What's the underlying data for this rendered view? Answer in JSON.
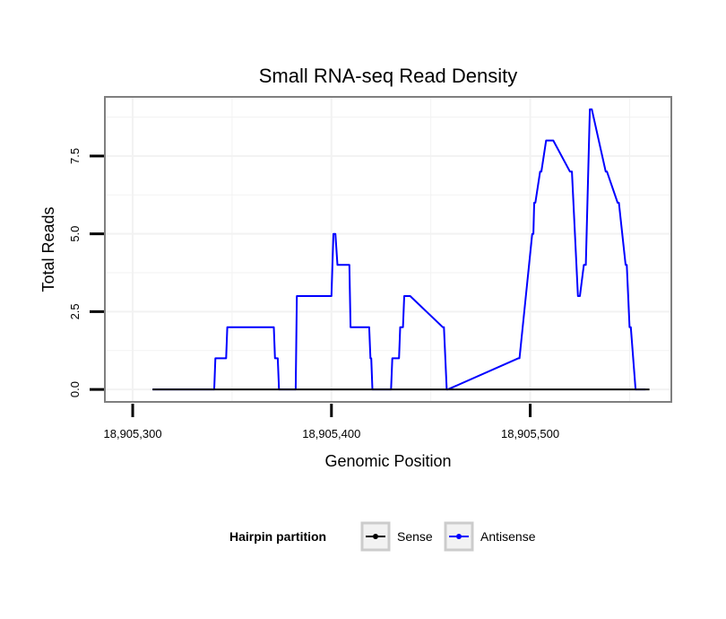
{
  "chart_data": {
    "type": "line",
    "title": "Small RNA-seq Read Density",
    "xlabel": "Genomic Position",
    "ylabel": "Total Reads",
    "xlim": [
      18905286,
      18905571
    ],
    "ylim": [
      -0.4,
      9.4
    ],
    "x_ticks": [
      18905300,
      18905400,
      18905500
    ],
    "x_tick_labels": [
      "18,905,300",
      "18,905,400",
      "18,905,500"
    ],
    "y_ticks": [
      0,
      2.5,
      5,
      7.5
    ],
    "y_tick_labels": [
      "0.0",
      "2.5",
      "5.0",
      "7.5"
    ],
    "grid": true,
    "legend": {
      "title": "Hairpin partition",
      "position": "bottom"
    },
    "series": [
      {
        "name": "Sense",
        "color": "#000000",
        "x": [
          18905310,
          18905560
        ],
        "y": [
          0,
          0
        ]
      },
      {
        "name": "Antisense",
        "color": "#0000ff",
        "x": [
          18905310,
          18905341,
          18905341.6,
          18905347,
          18905347.6,
          18905371,
          18905371.6,
          18905373,
          18905373.6,
          18905382,
          18905382.6,
          18905400,
          18905401,
          18905402,
          18905403,
          18905403.6,
          18905409,
          18905409.6,
          18905419,
          18905419.6,
          18905420,
          18905420.6,
          18905430,
          18905430.6,
          18905434,
          18905434.6,
          18905436,
          18905436.6,
          18905439,
          18905439.6,
          18905456,
          18905456.6,
          18905458,
          18905458.6,
          18905494,
          18905494.6,
          18905501,
          18905501.6,
          18905502,
          18905502.6,
          18905505,
          18905505.6,
          18905508,
          18905508.6,
          18905511,
          18905511.6,
          18905520,
          18905521,
          18905524,
          18905525,
          18905527,
          18905528,
          18905530,
          18905531,
          18905538,
          18905538.6,
          18905544,
          18905544.6,
          18905548,
          18905548.6,
          18905550,
          18905550.6,
          18905553,
          18905553.6,
          18905557,
          18905558
        ],
        "y": [
          0,
          0,
          1,
          1,
          2,
          2,
          1,
          1,
          0,
          0,
          3,
          3,
          5,
          5,
          4,
          4,
          4,
          2,
          2,
          1,
          1,
          0,
          0,
          1,
          1,
          2,
          2,
          3,
          3,
          3,
          2,
          2,
          0,
          0,
          1,
          1,
          5,
          5,
          6,
          6,
          7,
          7,
          8,
          8,
          8,
          8,
          7,
          7,
          3,
          3,
          4,
          4,
          9,
          9,
          7,
          7,
          6,
          6,
          4,
          4,
          2,
          2,
          0,
          0,
          0,
          0
        ]
      }
    ]
  }
}
